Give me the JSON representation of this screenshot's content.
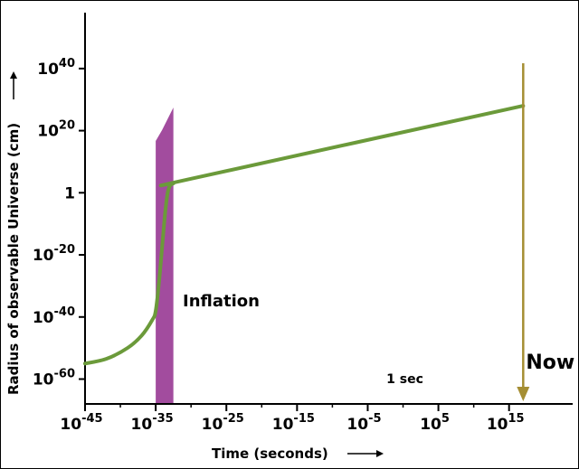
{
  "chart_data": {
    "type": "line",
    "title": "",
    "xlabel": "Time (seconds)",
    "ylabel": "Radius of observable Universe (cm)",
    "x_scale": "log",
    "y_scale": "log",
    "xlim_exp": [
      -45,
      24
    ],
    "ylim_exp": [
      -68,
      58
    ],
    "x_ticks": [
      {
        "exp": -45,
        "base": "10",
        "sup": "-45"
      },
      {
        "exp": -35,
        "base": "10",
        "sup": "-35"
      },
      {
        "exp": -25,
        "base": "10",
        "sup": "-25"
      },
      {
        "exp": -15,
        "base": "10",
        "sup": "-15"
      },
      {
        "exp": -5,
        "base": "10",
        "sup": "-5"
      },
      {
        "exp": 5,
        "base": "10",
        "sup": "5"
      },
      {
        "exp": 15,
        "base": "10",
        "sup": "15"
      }
    ],
    "y_ticks": [
      {
        "exp": 40,
        "base": "10",
        "sup": "40"
      },
      {
        "exp": 20,
        "base": "10",
        "sup": "20"
      },
      {
        "exp": 0,
        "base": "1",
        "sup": ""
      },
      {
        "exp": -20,
        "base": "10",
        "sup": "-20"
      },
      {
        "exp": -40,
        "base": "10",
        "sup": "-40"
      },
      {
        "exp": -60,
        "base": "10",
        "sup": "-60"
      }
    ],
    "series": [
      {
        "color": "#6b9a3a",
        "points": [
          {
            "x_exp": -45,
            "y_exp": -55
          },
          {
            "x_exp": -42,
            "y_exp": -53.5
          },
          {
            "x_exp": -39,
            "y_exp": -50
          },
          {
            "x_exp": -37,
            "y_exp": -46
          },
          {
            "x_exp": -35.5,
            "y_exp": -41
          },
          {
            "x_exp": -35,
            "y_exp": -38
          },
          {
            "x_exp": -34.5,
            "y_exp": -28
          },
          {
            "x_exp": -34,
            "y_exp": -15
          },
          {
            "x_exp": -33.6,
            "y_exp": -5
          },
          {
            "x_exp": -33.2,
            "y_exp": 1
          },
          {
            "x_exp": -32.5,
            "y_exp": 3
          },
          {
            "x_exp": -30,
            "y_exp": 4.5
          },
          {
            "x_exp": 17,
            "y_exp": 28
          }
        ]
      }
    ],
    "annotations": {
      "inflation": {
        "label": "Inflation",
        "color": "#a24c9e",
        "x_start_exp": -35,
        "x_end_exp": -32.5
      },
      "now": {
        "label": "Now",
        "color": "#a58e33",
        "x_exp": 17
      },
      "one_sec": {
        "label": "1 sec",
        "x_exp": 0
      }
    },
    "grid": false,
    "legend": "none"
  }
}
